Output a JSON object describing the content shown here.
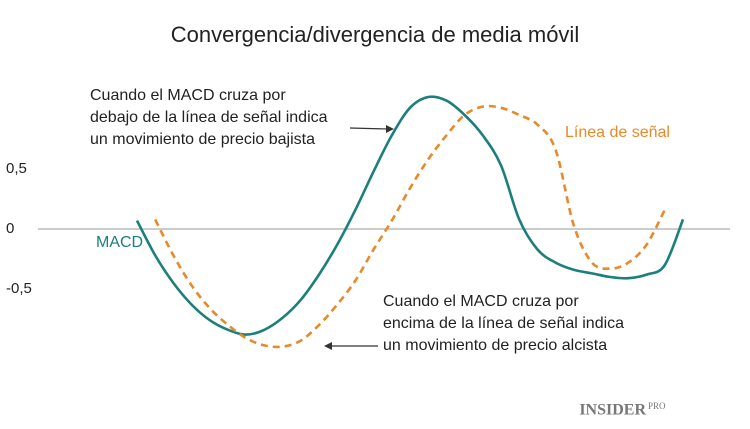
{
  "chart_data": {
    "type": "line",
    "title": "Convergencia/divergencia de media móvil",
    "categories": [
      null,
      null,
      null,
      null,
      null,
      null,
      null,
      null,
      null,
      null,
      null,
      null,
      null,
      null,
      null,
      null,
      null,
      null,
      null,
      null,
      null,
      null,
      null,
      null,
      null,
      null,
      null,
      null,
      null,
      null,
      null
    ],
    "series": [
      {
        "name": "MACD",
        "color": "#1b7f7b",
        "dashed": false,
        "values": [
          0.07,
          -0.22,
          -0.45,
          -0.63,
          -0.76,
          -0.84,
          -0.88,
          -0.84,
          -0.74,
          -0.59,
          -0.38,
          -0.13,
          0.16,
          0.48,
          0.78,
          1.01,
          1.1,
          1.07,
          0.95,
          0.78,
          0.53,
          0.08,
          -0.17,
          -0.28,
          -0.34,
          -0.37,
          -0.4,
          -0.41,
          -0.38,
          -0.3,
          0.08
        ]
      },
      {
        "name": "Línea de señal",
        "color": "#e8892a",
        "dashed": true,
        "values": [
          null,
          0.08,
          -0.22,
          -0.47,
          -0.66,
          -0.8,
          -0.91,
          -0.97,
          -0.98,
          -0.93,
          -0.8,
          -0.63,
          -0.43,
          -0.17,
          0.07,
          0.34,
          0.58,
          0.78,
          0.95,
          1.02,
          1.01,
          0.95,
          0.87,
          0.66,
          0.03,
          -0.28,
          -0.33,
          -0.28,
          -0.13,
          0.16,
          null
        ]
      }
    ],
    "ylim": [
      -1.1,
      1.2
    ],
    "yticks": [
      {
        "value": 0.5,
        "label": "0,5"
      },
      0,
      {
        "value": -0.5,
        "label": "-0,5"
      }
    ],
    "grid": false,
    "zero_line": true,
    "annotations": [
      [
        "Cuando el MACD cruza por",
        "debajo de la línea de señal indica",
        "un movimiento de precio bajista"
      ],
      [
        "Cuando el MACD cruza por",
        "encima de la línea de señal indica",
        "un movimiento de precio alcista"
      ]
    ]
  },
  "brand": {
    "name": "INSIDER",
    "suffix": "PRO"
  }
}
